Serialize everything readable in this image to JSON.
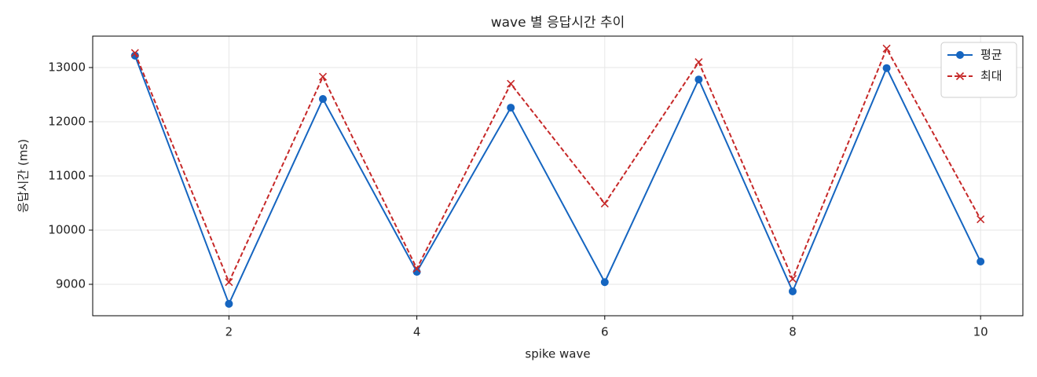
{
  "chart_data": {
    "type": "line",
    "title": "wave 별 응답시간 추이",
    "x_label": "spike wave",
    "y_label": "응답시간 (ms)",
    "x": [
      1,
      2,
      3,
      4,
      5,
      6,
      7,
      8,
      9,
      10
    ],
    "series": [
      {
        "name": "평균",
        "color": "#1565c0",
        "marker": "o",
        "linestyle": "solid",
        "values": [
          13220,
          8640,
          12420,
          9230,
          12260,
          9040,
          12780,
          8870,
          12990,
          9420
        ]
      },
      {
        "name": "최대",
        "color": "#c62828",
        "marker": "x",
        "linestyle": "dashed",
        "values": [
          13270,
          9040,
          12830,
          9290,
          12700,
          10490,
          13100,
          9100,
          13350,
          10200
        ]
      }
    ],
    "xlim": [
      0.55,
      10.45
    ],
    "ylim": [
      8420,
      13580
    ],
    "xticks": [
      2,
      4,
      6,
      8,
      10
    ],
    "yticks": [
      9000,
      10000,
      11000,
      12000,
      13000
    ],
    "grid": true,
    "legend": "upper right"
  }
}
